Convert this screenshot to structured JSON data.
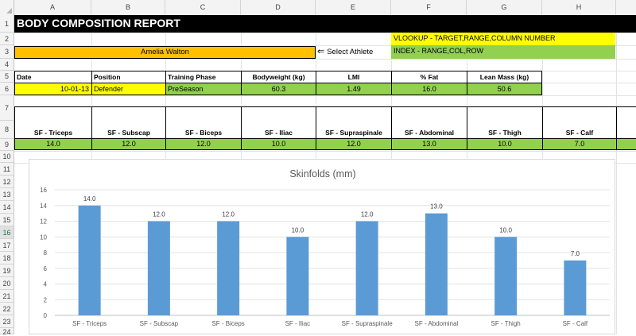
{
  "columns": [
    "A",
    "B",
    "C",
    "D",
    "E",
    "F",
    "G",
    "H"
  ],
  "rows": [
    "1",
    "2",
    "3",
    "4",
    "5",
    "6",
    "7",
    "8",
    "9",
    "10",
    "11",
    "12",
    "13",
    "14",
    "15",
    "16",
    "17",
    "18",
    "19",
    "20",
    "21",
    "22",
    "23",
    "24"
  ],
  "selected_row": "16",
  "report_title": "BODY COMPOSITION REPORT",
  "notes": {
    "vlookup": "VLOOKUP - TARGET,RANGE,COLUMN NUMBER",
    "index": "INDEX - RANGE,COL,ROW"
  },
  "athlete": {
    "name": "Amelia Walton",
    "select_label": "Select Athlete"
  },
  "profile": {
    "headers": [
      "Date",
      "Position",
      "Training Phase",
      "Bodyweight (kg)",
      "LMI",
      "% Fat",
      "Lean Mass (kg)"
    ],
    "values": [
      "10-01-13",
      "Defender",
      "PreSeason",
      "60.3",
      "1.49",
      "16.0",
      "50.6"
    ]
  },
  "skinfolds": {
    "headers": [
      "SF - Triceps",
      "SF - Subscap",
      "SF - Biceps",
      "SF - Iliac",
      "SF - Supraspinale",
      "SF - Abdominal",
      "SF - Thigh",
      "SF - Calf"
    ],
    "values": [
      "14.0",
      "12.0",
      "12.0",
      "10.0",
      "12.0",
      "13.0",
      "10.0",
      "7.0"
    ]
  },
  "colors": {
    "title_bg": "#000000",
    "yellow": "#ffff00",
    "green": "#92d050",
    "orange": "#ffc000",
    "bar": "#5b9bd5"
  },
  "chart_data": {
    "type": "bar",
    "title": "Skinfolds (mm)",
    "categories": [
      "SF - Triceps",
      "SF - Subscap",
      "SF - Biceps",
      "SF - Iliac",
      "SF - Supraspinale",
      "SF - Abdominal",
      "SF - Thigh",
      "SF - Calf"
    ],
    "values": [
      14.0,
      12.0,
      12.0,
      10.0,
      12.0,
      13.0,
      10.0,
      7.0
    ],
    "data_labels": [
      "14.0",
      "12.0",
      "12.0",
      "10.0",
      "12.0",
      "13.0",
      "10.0",
      "7.0"
    ],
    "yticks": [
      "0",
      "2",
      "4",
      "6",
      "8",
      "10",
      "12",
      "14",
      "16"
    ],
    "ylim": [
      0,
      16
    ],
    "grid": true,
    "legend": "none"
  }
}
